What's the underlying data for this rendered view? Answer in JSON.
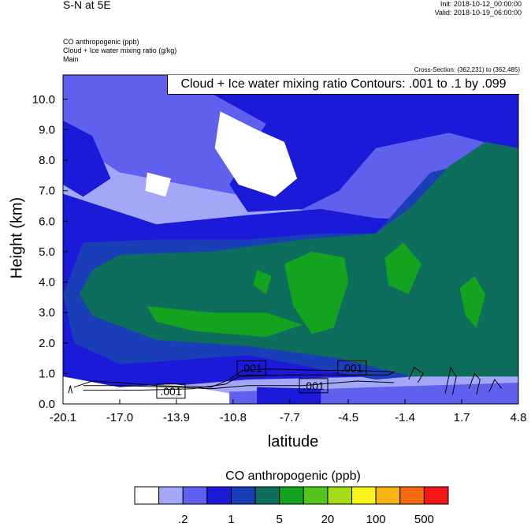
{
  "header": {
    "title": "S-N at 5E",
    "init": "Init: 2018-10-12_00:00:00",
    "valid": "Valid: 2018-10-19_06:00:00",
    "field_lines": [
      "CO anthropogenic   (ppb)",
      "Cloud + Ice water mixing ratio   (g/kg)",
      "Main"
    ],
    "cross_section": "Cross-Section: (362,231) to (362,485)",
    "contour_note": "Cloud + Ice water mixing ratio Contours: .001 to .1 by .099"
  },
  "colors": {
    "fill_levels": [
      "#ffffff",
      "#a3a7f8",
      "#6060ee",
      "#1a1ad8",
      "#1a3db8",
      "#0d6e5e",
      "#13a31e",
      "#51c51a",
      "#a4dc17",
      "#f7f51b",
      "#f7b412",
      "#f76a0e",
      "#f51616"
    ]
  },
  "chart_data": {
    "type": "contour",
    "title": "S-N at 5E",
    "xlabel": "latitude",
    "ylabel": "Height (km)",
    "xlim": [
      -20.1,
      4.8
    ],
    "ylim": [
      0.0,
      10.8
    ],
    "x_ticks": [
      "-20.1",
      "-17.0",
      "-13.9",
      "-10.8",
      "-7.7",
      "-4.5",
      "-1.4",
      "1.7",
      "4.8"
    ],
    "y_ticks": [
      "0.0",
      "1.0",
      "2.0",
      "3.0",
      "4.0",
      "5.0",
      "6.0",
      "7.0",
      "8.0",
      "9.0",
      "10.0"
    ],
    "filled_field": "CO anthropogenic (ppb)",
    "legend": {
      "title": "CO anthropogenic  (ppb)",
      "labels": [
        ".2",
        "1",
        "5",
        "20",
        "100",
        "500"
      ],
      "orientation": "horizontal",
      "position": "bottom"
    },
    "contour_field": "Cloud + Ice water mixing ratio (g/kg)",
    "contour_labels": [
      ".001",
      ".001",
      ".001",
      ".001"
    ]
  }
}
